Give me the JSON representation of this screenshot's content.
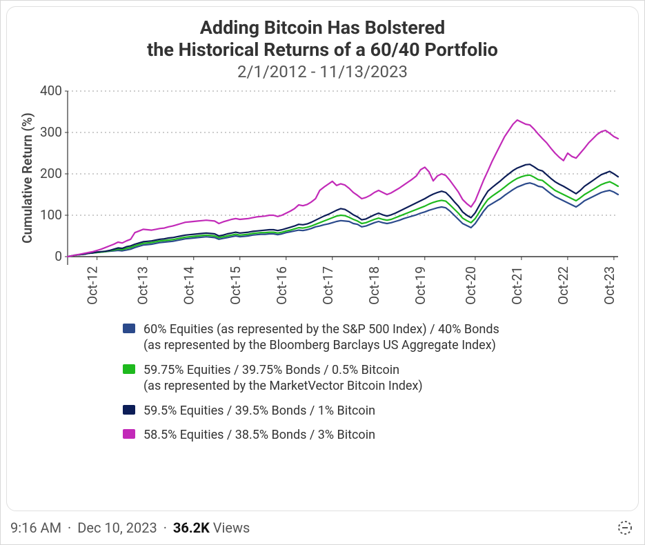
{
  "chart": {
    "type": "line",
    "title_line1": "Adding Bitcoin Has Bolstered",
    "title_line2": "the Historical Returns of a 60/40 Portfolio",
    "title_fontsize": 27,
    "title_color": "#333333",
    "subtitle": "2/1/2012 - 11/13/2023",
    "subtitle_fontsize": 24,
    "subtitle_color": "#555555",
    "y_axis_label": "Cumulative Return (%)",
    "y_axis_label_fontsize": 19,
    "ylim": [
      -20,
      400
    ],
    "ytick_step": 100,
    "yticks": [
      0,
      100,
      200,
      300,
      400
    ],
    "x_tick_labels": [
      "Oct-12",
      "Oct-13",
      "Oct-14",
      "Oct-15",
      "Oct-16",
      "Oct-17",
      "Oct-18",
      "Oct-19",
      "Oct-20",
      "Oct-21",
      "Oct-22",
      "Oct-23"
    ],
    "tick_fontsize": 19,
    "tick_color": "#444444",
    "background_color": "#ffffff",
    "grid_color": "#9a9a9a",
    "grid_dash": "2,4",
    "axis_color": "#333333",
    "line_width": 2.2,
    "series": [
      {
        "name": "60% Equities (as represented by the S&P 500 Index) / 40% Bonds (as represented by the Bloomberg Barclays US Aggregate Index)",
        "color": "#2b4a8b",
        "values": [
          0,
          2,
          4,
          5,
          6,
          8,
          9,
          10,
          11,
          12,
          13,
          14,
          15,
          14,
          16,
          18,
          22,
          25,
          28,
          29,
          30,
          32,
          34,
          35,
          36,
          37,
          39,
          41,
          43,
          44,
          45,
          46,
          47,
          48,
          47,
          46,
          42,
          44,
          46,
          48,
          50,
          48,
          49,
          50,
          52,
          53,
          54,
          54,
          55,
          55,
          53,
          55,
          58,
          60,
          62,
          64,
          63,
          65,
          68,
          72,
          74,
          77,
          79,
          82,
          85,
          87,
          86,
          85,
          80,
          78,
          72,
          74,
          78,
          82,
          85,
          82,
          80,
          82,
          85,
          88,
          92,
          95,
          98,
          101,
          105,
          108,
          112,
          115,
          118,
          120,
          118,
          110,
          100,
          90,
          80,
          75,
          70,
          80,
          95,
          110,
          122,
          128,
          134,
          140,
          148,
          155,
          162,
          168,
          172,
          176,
          178,
          175,
          170,
          168,
          160,
          152,
          145,
          140,
          135,
          130,
          125,
          120,
          127,
          135,
          140,
          145,
          150,
          155,
          158,
          160,
          156,
          150
        ]
      },
      {
        "name": "59.75% Equities / 39.75% Bonds / 0.5% Bitcoin (as represented by the MarketVector Bitcoin Index)",
        "color": "#1eb91e",
        "values": [
          0,
          2,
          4,
          5,
          6,
          8,
          9,
          10,
          11,
          12,
          14,
          16,
          18,
          17,
          20,
          22,
          26,
          29,
          32,
          33,
          34,
          36,
          38,
          39,
          40,
          41,
          43,
          45,
          47,
          48,
          49,
          50,
          51,
          52,
          51,
          50,
          46,
          48,
          50,
          52,
          54,
          52,
          53,
          54,
          56,
          57,
          58,
          58,
          59,
          59,
          57,
          59,
          62,
          64,
          67,
          70,
          69,
          71,
          74,
          78,
          82,
          86,
          90,
          94,
          98,
          100,
          99,
          95,
          90,
          86,
          80,
          82,
          86,
          90,
          93,
          90,
          88,
          90,
          94,
          98,
          102,
          106,
          110,
          114,
          118,
          122,
          127,
          131,
          134,
          136,
          134,
          125,
          115,
          105,
          93,
          87,
          82,
          92,
          108,
          124,
          138,
          146,
          153,
          160,
          168,
          176,
          183,
          189,
          193,
          196,
          197,
          192,
          186,
          184,
          176,
          168,
          160,
          155,
          150,
          145,
          140,
          135,
          142,
          150,
          156,
          162,
          168,
          174,
          178,
          181,
          176,
          170
        ]
      },
      {
        "name": "59.5% Equities / 39.5% Bonds / 1% Bitcoin",
        "color": "#0c1d57",
        "values": [
          0,
          2,
          4,
          5,
          6,
          8,
          9,
          11,
          12,
          13,
          15,
          18,
          21,
          20,
          24,
          26,
          30,
          33,
          36,
          37,
          38,
          40,
          42,
          43,
          45,
          46,
          48,
          50,
          52,
          53,
          54,
          55,
          56,
          57,
          56,
          55,
          50,
          52,
          55,
          57,
          59,
          57,
          58,
          59,
          61,
          62,
          63,
          64,
          65,
          65,
          63,
          65,
          68,
          71,
          74,
          78,
          77,
          79,
          83,
          88,
          93,
          98,
          102,
          107,
          112,
          116,
          114,
          108,
          101,
          96,
          89,
          91,
          96,
          101,
          105,
          101,
          98,
          101,
          105,
          110,
          115,
          120,
          125,
          130,
          135,
          140,
          146,
          151,
          155,
          158,
          155,
          145,
          133,
          122,
          108,
          100,
          94,
          106,
          124,
          142,
          158,
          167,
          175,
          183,
          192,
          200,
          208,
          214,
          218,
          222,
          223,
          217,
          210,
          207,
          198,
          189,
          181,
          175,
          170,
          164,
          158,
          152,
          160,
          170,
          177,
          184,
          191,
          198,
          202,
          206,
          200,
          193
        ]
      },
      {
        "name": "58.5% Equities / 38.5% Bonds / 3% Bitcoin",
        "color": "#c22ab8",
        "values": [
          0,
          2,
          4,
          6,
          8,
          10,
          12,
          15,
          18,
          22,
          26,
          30,
          35,
          33,
          38,
          42,
          58,
          62,
          66,
          65,
          64,
          66,
          68,
          69,
          72,
          74,
          77,
          80,
          83,
          84,
          85,
          86,
          87,
          88,
          87,
          86,
          80,
          84,
          87,
          90,
          92,
          90,
          91,
          92,
          94,
          96,
          97,
          98,
          100,
          100,
          97,
          100,
          105,
          110,
          116,
          125,
          123,
          126,
          132,
          140,
          160,
          168,
          175,
          182,
          172,
          176,
          173,
          165,
          155,
          148,
          140,
          143,
          148,
          155,
          160,
          155,
          150,
          154,
          160,
          166,
          173,
          180,
          187,
          195,
          210,
          216,
          205,
          183,
          195,
          200,
          196,
          184,
          170,
          156,
          138,
          128,
          120,
          135,
          160,
          185,
          207,
          230,
          250,
          270,
          290,
          305,
          320,
          330,
          325,
          320,
          318,
          308,
          296,
          285,
          275,
          262,
          250,
          240,
          232,
          250,
          242,
          238,
          250,
          262,
          275,
          285,
          295,
          302,
          305,
          298,
          290,
          285
        ]
      }
    ]
  },
  "legend": {
    "fontsize": 18,
    "swatch": [
      {
        "color": "#2b4a8b",
        "label_line1": "60% Equities (as represented by the S&P 500 Index) / 40% Bonds",
        "label_line2": "(as represented by the Bloomberg Barclays US Aggregate Index)"
      },
      {
        "color": "#1eb91e",
        "label_line1": "59.75% Equities / 39.75% Bonds / 0.5% Bitcoin",
        "label_line2": "(as represented by the MarketVector Bitcoin Index)"
      },
      {
        "color": "#0c1d57",
        "label_line1": "59.5% Equities / 39.5% Bonds / 1% Bitcoin",
        "label_line2": ""
      },
      {
        "color": "#c22ab8",
        "label_line1": "58.5% Equities / 38.5% Bonds / 3% Bitcoin",
        "label_line2": ""
      }
    ]
  },
  "meta": {
    "time": "9:16 AM",
    "separator": "·",
    "date": "Dec 10, 2023",
    "views_count": "36.2K",
    "views_label": " Views",
    "fontsize": 20
  }
}
